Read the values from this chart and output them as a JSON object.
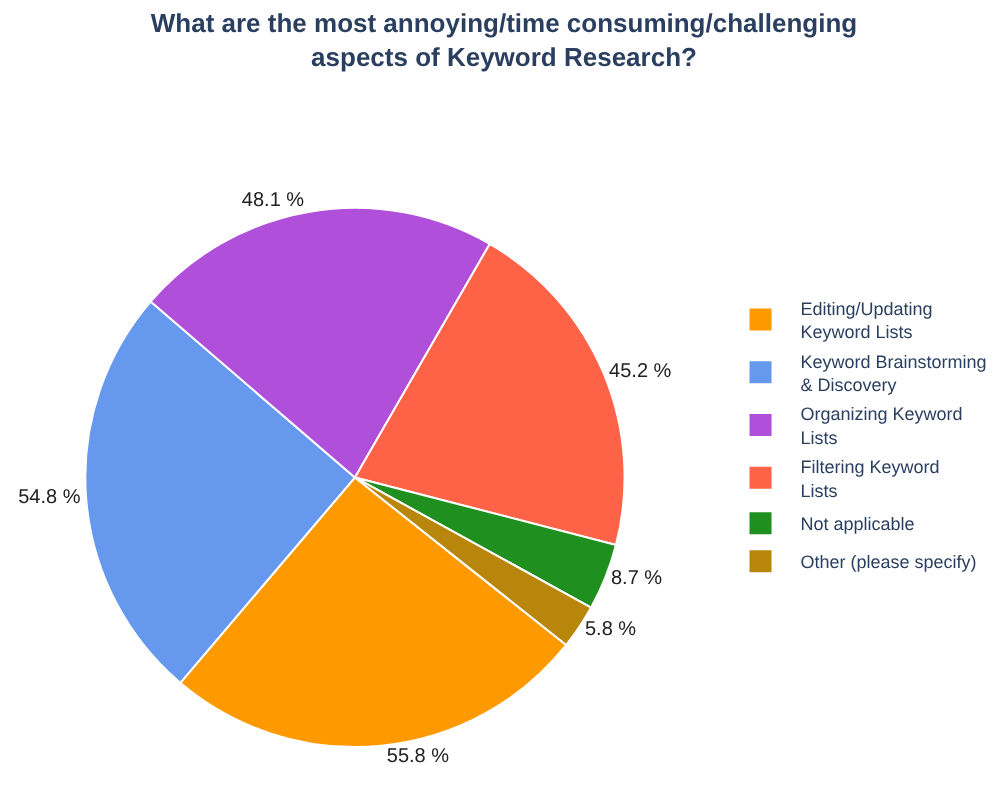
{
  "chart_data": {
    "type": "pie",
    "title": "What are the most annoying/time consuming/challenging aspects of Keyword Research?",
    "categories": [
      "Editing/Updating Keyword Lists",
      "Keyword Brainstorming & Discovery",
      "Organizing Keyword Lists",
      "Filtering Keyword Lists",
      "Not applicable",
      "Other (please specify)"
    ],
    "values": [
      55.8,
      54.8,
      48.1,
      45.2,
      8.7,
      5.8
    ],
    "value_labels": [
      "55.8 %",
      "54.8 %",
      "48.1 %",
      "45.2 %",
      "8.7 %",
      "5.8 %"
    ],
    "colors": [
      "#ff9900",
      "#6699ee",
      "#b04fd9",
      "#ff6347",
      "#1f8f1f",
      "#b8860b"
    ],
    "legend": "right"
  }
}
